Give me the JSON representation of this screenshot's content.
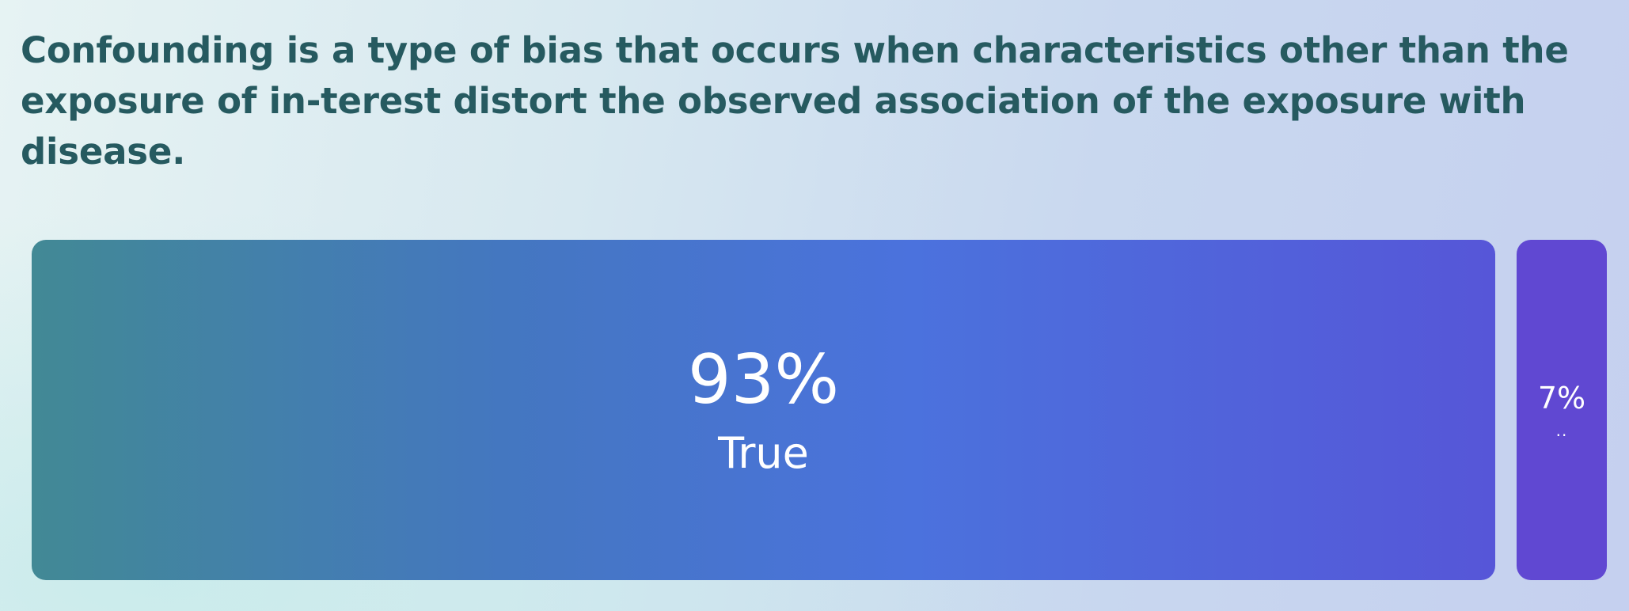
{
  "question": {
    "text": "Confounding is a type of bias that occurs when characteristics other than the exposure of in-terest distort the observed association of the exposure with disease."
  },
  "results": [
    {
      "label": "True",
      "percent_label": "93%",
      "value": 0.93
    },
    {
      "label": "..",
      "percent_label": "7%",
      "value": 0.07
    }
  ],
  "colors": {
    "question_text": "#265a60",
    "bar_true_start": "#428995",
    "bar_true_end": "#5656d8",
    "bar_false": "#6048d2"
  }
}
